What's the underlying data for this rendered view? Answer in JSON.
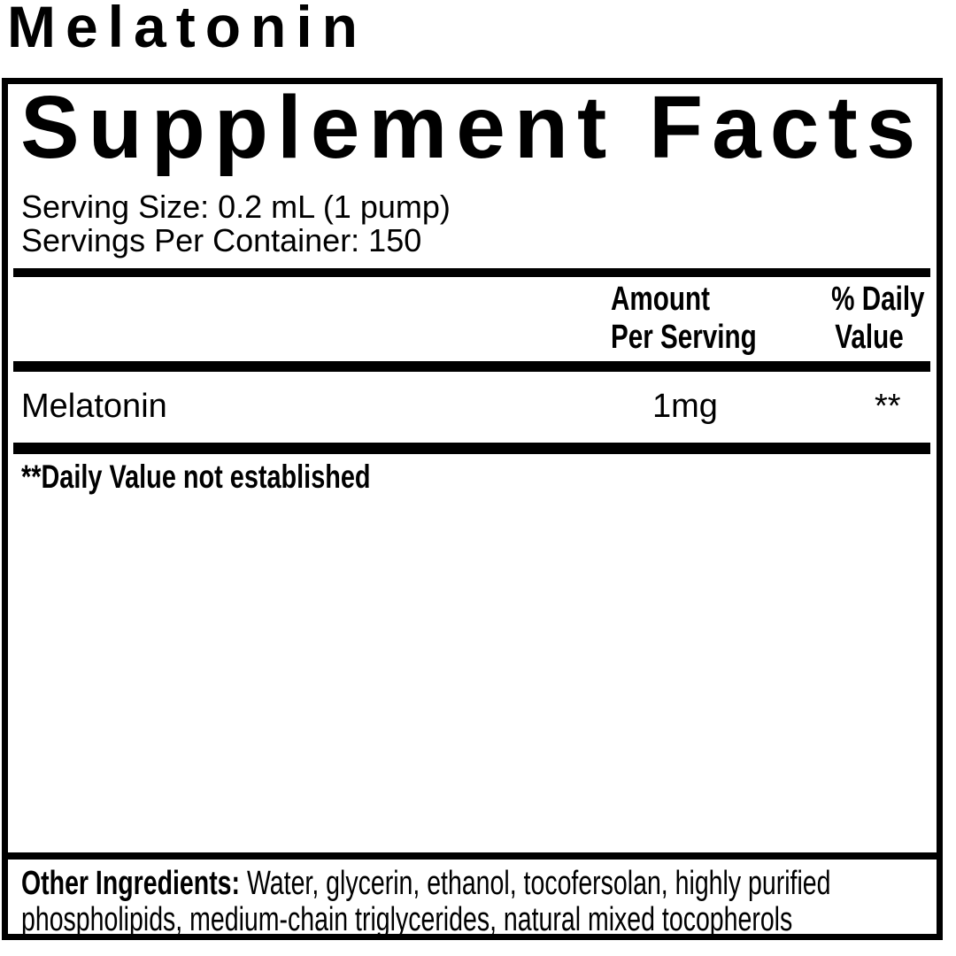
{
  "colors": {
    "ink": "#000000",
    "paper": "#ffffff"
  },
  "header": {
    "product_title": "Melatonin"
  },
  "supplement_facts": {
    "title": "Supplement Facts",
    "serving_size_line": "Serving Size: 0.2 mL (1 pump)",
    "servings_per_container_line": "Servings Per Container: 150",
    "column_headers": {
      "amount_line1": "Amount",
      "amount_line2": "Per Serving",
      "daily_value_line1": "% Daily",
      "daily_value_line2": "Value"
    },
    "rows": [
      {
        "name": "Melatonin",
        "amount": "1mg",
        "daily_value": "**"
      }
    ],
    "footnote": "**Daily Value not established",
    "other_ingredients": {
      "label": "Other Ingredients:",
      "text": "Water, glycerin, ethanol, tocofersolan, highly purified phospholipids, medium-chain triglycerides, natural mixed tocopherols"
    }
  }
}
